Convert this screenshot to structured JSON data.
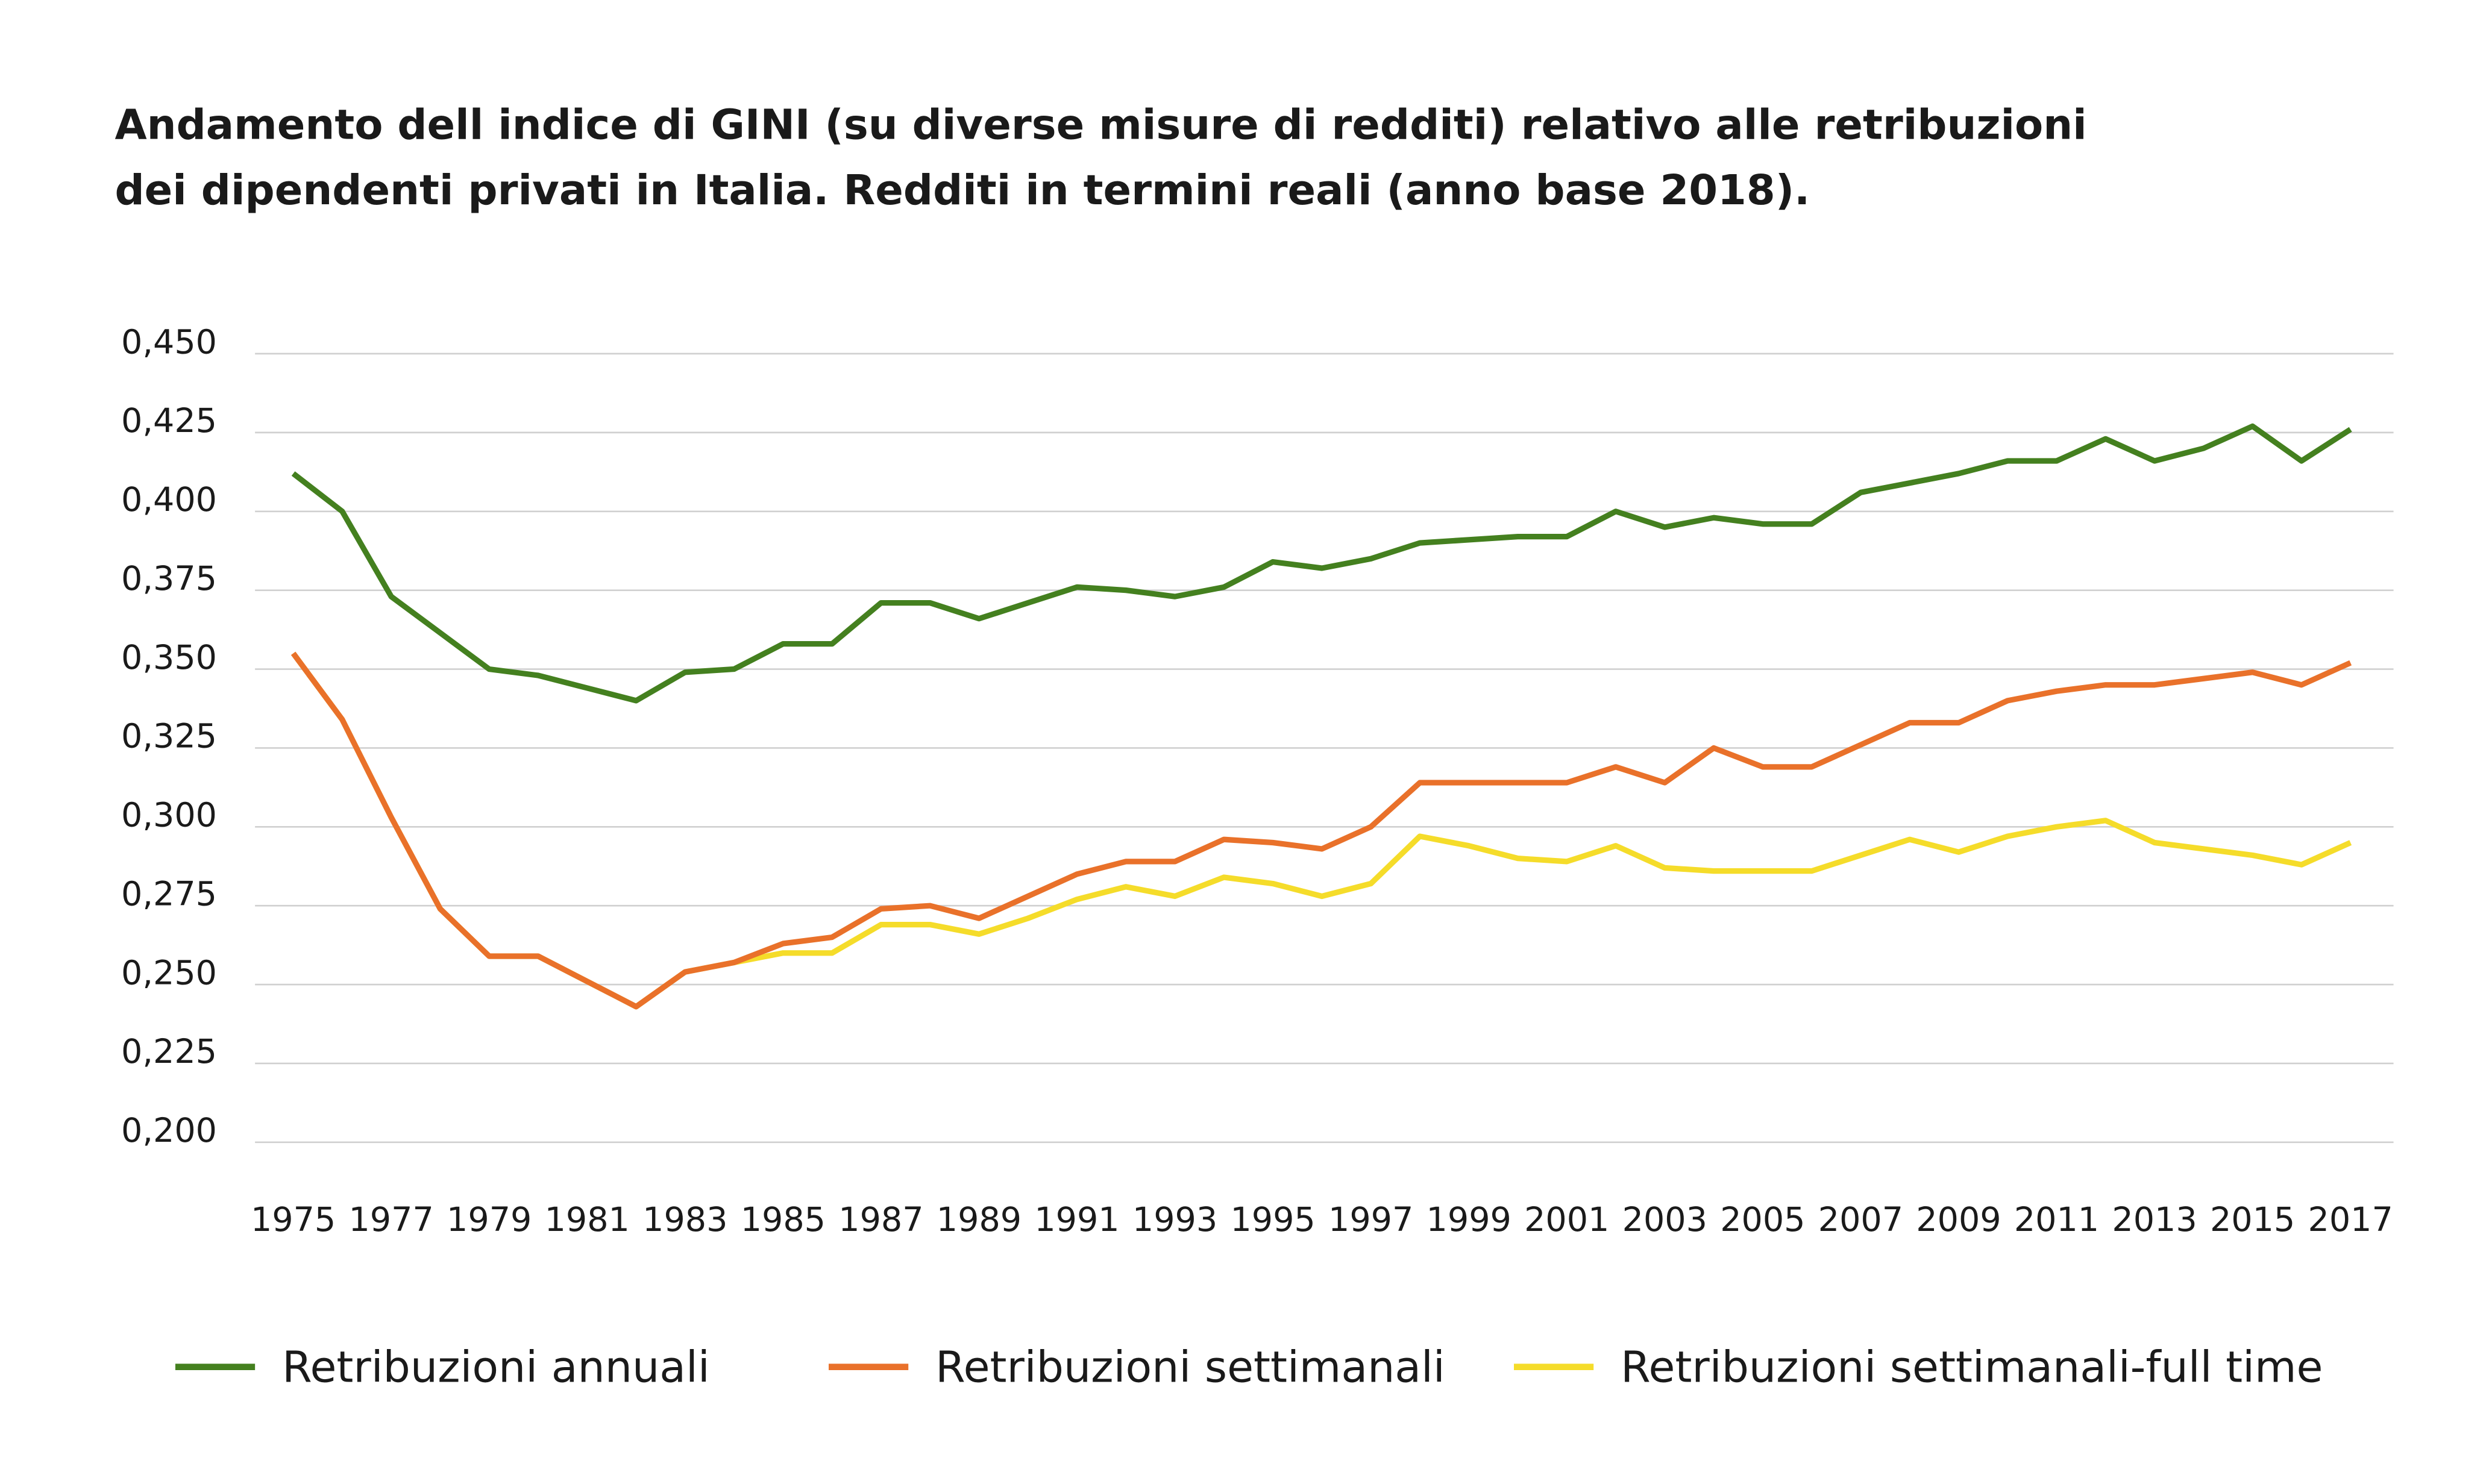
{
  "chart_data": {
    "type": "line",
    "title": [
      "Andamento dell indice di GINI (su diverse misure di redditi) relativo alle retribuzioni",
      "dei dipendenti privati in Italia. Redditi in termini reali (anno base 2018)."
    ],
    "x": [
      1975,
      1976,
      1977,
      1978,
      1979,
      1980,
      1981,
      1982,
      1983,
      1984,
      1985,
      1986,
      1987,
      1988,
      1989,
      1990,
      1991,
      1992,
      1993,
      1994,
      1995,
      1996,
      1997,
      1998,
      1999,
      2000,
      2001,
      2002,
      2003,
      2004,
      2005,
      2006,
      2007,
      2008,
      2009,
      2010,
      2011,
      2012,
      2013,
      2014,
      2015,
      2016,
      2017
    ],
    "xlim": [
      1975,
      2017
    ],
    "xticks": [
      1975,
      1977,
      1979,
      1981,
      1983,
      1985,
      1987,
      1989,
      1991,
      1993,
      1995,
      1997,
      1999,
      2001,
      2003,
      2005,
      2007,
      2009,
      2011,
      2013,
      2015,
      2017
    ],
    "ylim": [
      0.2,
      0.45
    ],
    "yticks": [
      {
        "value": 0.2,
        "label": "0,200"
      },
      {
        "value": 0.225,
        "label": "0,225"
      },
      {
        "value": 0.25,
        "label": "0,250"
      },
      {
        "value": 0.275,
        "label": "0,275"
      },
      {
        "value": 0.3,
        "label": "0,300"
      },
      {
        "value": 0.325,
        "label": "0,325"
      },
      {
        "value": 0.35,
        "label": "0,350"
      },
      {
        "value": 0.375,
        "label": "0,375"
      },
      {
        "value": 0.4,
        "label": "0,400"
      },
      {
        "value": 0.425,
        "label": "0,425"
      },
      {
        "value": 0.45,
        "label": "0,450"
      }
    ],
    "grid": true,
    "legend": "bottom",
    "series": [
      {
        "name": "Retribuzioni annuali",
        "color": "#44801f",
        "values": [
          0.412,
          0.4,
          0.373,
          0.3615,
          0.35,
          0.348,
          0.344,
          0.34,
          0.349,
          0.35,
          0.358,
          0.358,
          0.371,
          0.371,
          0.366,
          0.371,
          0.376,
          0.375,
          0.373,
          0.376,
          0.384,
          0.382,
          0.385,
          0.39,
          0.391,
          0.392,
          0.392,
          0.4,
          0.395,
          0.398,
          0.396,
          0.396,
          0.406,
          0.409,
          0.412,
          0.416,
          0.416,
          0.423,
          0.416,
          0.42,
          0.427,
          0.416,
          0.426
        ]
      },
      {
        "name": "Retribuzioni settimanali",
        "color": "#e9712a",
        "values": [
          0.355,
          0.334,
          0.303,
          0.274,
          0.259,
          0.259,
          0.251,
          0.243,
          0.254,
          0.257,
          0.263,
          0.265,
          0.274,
          0.275,
          0.271,
          0.278,
          0.285,
          0.289,
          0.289,
          0.296,
          0.295,
          0.293,
          0.3,
          0.314,
          0.314,
          0.314,
          0.314,
          0.319,
          0.314,
          0.325,
          0.319,
          0.319,
          0.326,
          0.333,
          0.333,
          0.34,
          0.343,
          0.345,
          0.345,
          0.347,
          0.349,
          0.345,
          0.352
        ]
      },
      {
        "name": "Retribuzioni settimanali-full time",
        "color": "#f5dc2a",
        "values": [
          0.355,
          0.334,
          0.303,
          0.274,
          0.259,
          0.259,
          0.251,
          0.243,
          0.254,
          0.257,
          0.26,
          0.26,
          0.269,
          0.269,
          0.266,
          0.271,
          0.277,
          0.281,
          0.278,
          0.284,
          0.282,
          0.278,
          0.282,
          0.297,
          0.294,
          0.29,
          0.289,
          0.294,
          0.287,
          0.286,
          0.286,
          0.286,
          0.291,
          0.296,
          0.292,
          0.297,
          0.3,
          0.302,
          0.295,
          0.293,
          0.291,
          0.288,
          0.295
        ]
      }
    ]
  }
}
